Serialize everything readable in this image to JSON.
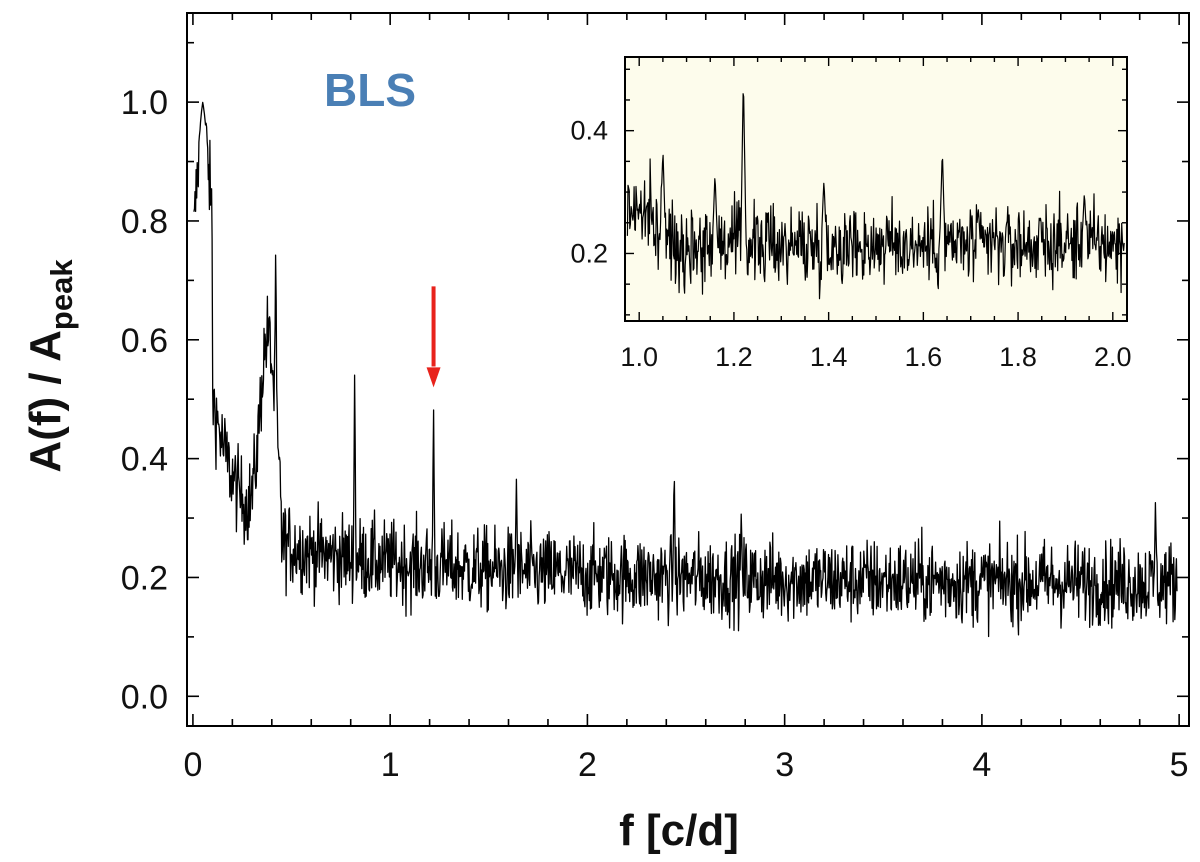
{
  "colors": {
    "line": "#000000",
    "annotation_text": "#4a7fb5",
    "arrow": "#e8231c",
    "inset_background": "#fdfcec"
  },
  "chart_data": [
    {
      "type": "line",
      "annotation": "BLS",
      "xlabel": "f [c/d]",
      "ylabel_main": "A(f) / A",
      "ylabel_sub": "peak",
      "xlim": [
        -0.03,
        5.05
      ],
      "ylim": [
        -0.05,
        1.15
      ],
      "xticks": [
        "0",
        "1",
        "2",
        "3",
        "4",
        "5"
      ],
      "yticks": [
        "0.0",
        "0.2",
        "0.4",
        "0.6",
        "0.8",
        "1.0"
      ],
      "arrow_at_x": 1.22,
      "peaks": [
        {
          "x": 0.05,
          "y": 1.0
        },
        {
          "x": 0.25,
          "y": 0.27
        },
        {
          "x": 0.42,
          "y": 0.77
        },
        {
          "x": 0.82,
          "y": 0.55
        },
        {
          "x": 1.22,
          "y": 0.49
        },
        {
          "x": 1.64,
          "y": 0.37
        },
        {
          "x": 2.44,
          "y": 0.39
        },
        {
          "x": 2.78,
          "y": 0.31
        },
        {
          "x": 4.88,
          "y": 0.33
        }
      ]
    },
    {
      "type": "line",
      "role": "inset",
      "xlim": [
        0.97,
        2.03
      ],
      "ylim": [
        0.09,
        0.52
      ],
      "xticks": [
        "1.0",
        "1.2",
        "1.4",
        "1.6",
        "1.8",
        "2.0"
      ],
      "yticks": [
        "0.2",
        "0.4"
      ],
      "peaks": [
        {
          "x": 1.05,
          "y": 0.37
        },
        {
          "x": 1.16,
          "y": 0.33
        },
        {
          "x": 1.22,
          "y": 0.49
        },
        {
          "x": 1.39,
          "y": 0.32
        },
        {
          "x": 1.64,
          "y": 0.37
        },
        {
          "x": 1.94,
          "y": 0.3
        }
      ]
    }
  ]
}
